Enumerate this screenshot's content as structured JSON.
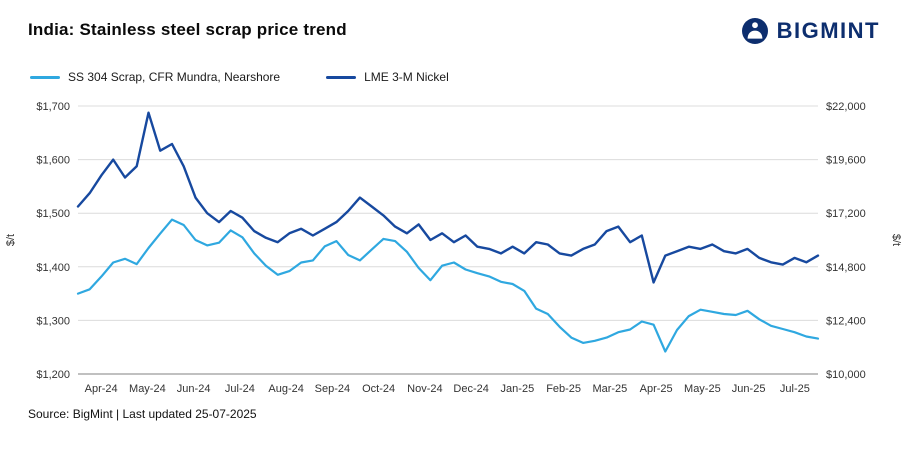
{
  "header": {
    "title": "India: Stainless steel scrap price trend",
    "brand": "BIGMINT"
  },
  "footer": {
    "source": "Source: BigMint | Last updated 25-07-2025"
  },
  "colors": {
    "ss304_line": "#2fa8e0",
    "lme_line": "#17499f",
    "brand_navy": "#0d2e6e",
    "gridline": "#dcdcdc",
    "axis_line": "#808080"
  },
  "chart_data": {
    "type": "line",
    "title": "India: Stainless steel scrap price trend",
    "grid": true,
    "legend_position": "top-left",
    "x_tick_labels": [
      "Apr-24",
      "May-24",
      "Jun-24",
      "Jul-24",
      "Aug-24",
      "Sep-24",
      "Oct-24",
      "Nov-24",
      "Dec-24",
      "Jan-25",
      "Feb-25",
      "Mar-25",
      "Apr-25",
      "May-25",
      "Jun-25",
      "Jul-25"
    ],
    "left_axis": {
      "label": "$/t",
      "range": [
        1200,
        1700
      ],
      "ticks": [
        1700,
        1600,
        1500,
        1400,
        1300,
        1200
      ],
      "tick_labels": [
        "$1,700",
        "$1,600",
        "$1,500",
        "$1,400",
        "$1,300",
        "$1,200"
      ]
    },
    "right_axis": {
      "label": "$/t",
      "range": [
        10000,
        22000
      ],
      "ticks": [
        22000,
        19600,
        17200,
        14800,
        12400,
        10000
      ],
      "tick_labels": [
        "$22,000",
        "$19,600",
        "$17,200",
        "$14,800",
        "$12,400",
        "$10,000"
      ]
    },
    "series": [
      {
        "name": "SS 304 Scrap, CFR Mundra, Nearshore",
        "axis": "left",
        "color": "#2fa8e0",
        "values": [
          1350,
          1358,
          1382,
          1408,
          1415,
          1405,
          1435,
          1462,
          1488,
          1478,
          1450,
          1440,
          1445,
          1468,
          1455,
          1425,
          1402,
          1385,
          1392,
          1408,
          1412,
          1438,
          1448,
          1422,
          1412,
          1432,
          1452,
          1448,
          1428,
          1398,
          1375,
          1402,
          1408,
          1395,
          1388,
          1382,
          1372,
          1368,
          1355,
          1322,
          1312,
          1288,
          1268,
          1258,
          1262,
          1268,
          1278,
          1283,
          1298,
          1292,
          1242,
          1282,
          1308,
          1320,
          1316,
          1312,
          1310,
          1318,
          1302,
          1290,
          1284,
          1278,
          1270,
          1266
        ]
      },
      {
        "name": "LME 3-M Nickel",
        "axis": "right",
        "color": "#17499f",
        "values": [
          17500,
          18100,
          18900,
          19600,
          18800,
          19300,
          21700,
          20000,
          20300,
          19300,
          17900,
          17200,
          16800,
          17300,
          17000,
          16400,
          16100,
          15900,
          16300,
          16500,
          16200,
          16500,
          16800,
          17300,
          17900,
          17500,
          17100,
          16600,
          16300,
          16700,
          16000,
          16300,
          15900,
          16200,
          15700,
          15600,
          15400,
          15700,
          15400,
          15900,
          15800,
          15400,
          15300,
          15600,
          15800,
          16400,
          16600,
          15900,
          16200,
          14100,
          15300,
          15500,
          15700,
          15600,
          15800,
          15500,
          15400,
          15600,
          15200,
          15000,
          14900,
          15200,
          15000,
          15300
        ]
      }
    ]
  }
}
